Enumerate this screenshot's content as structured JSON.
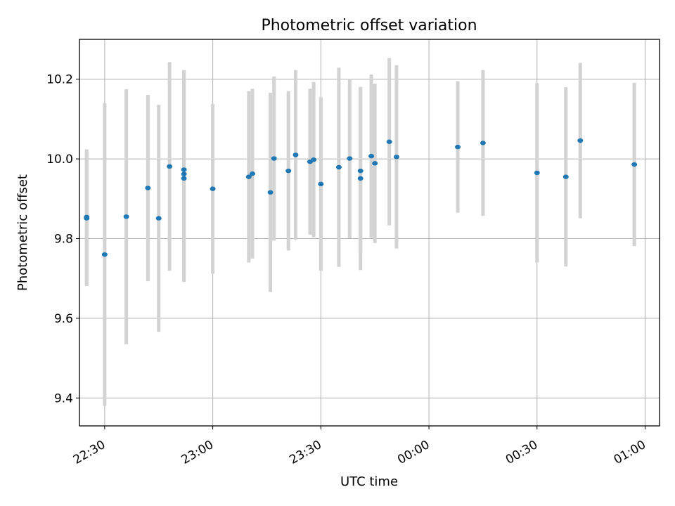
{
  "chart_data": {
    "type": "scatter",
    "title": "Photometric offset variation",
    "xlabel": "UTC time",
    "ylabel": "Photometric offset",
    "grid": true,
    "x_unit": "UTC time (HH:MM, crossing midnight)",
    "xlim": [
      "22:23",
      "01:04"
    ],
    "ylim": [
      9.33,
      10.3
    ],
    "x_ticks": [
      "22:30",
      "23:00",
      "23:30",
      "00:00",
      "00:30",
      "01:00"
    ],
    "y_ticks": [
      "9.4",
      "9.6",
      "9.8",
      "10.0",
      "10.2"
    ],
    "colors": {
      "point": "#1f77b4",
      "errorbar": "#d3d3d3",
      "grid": "#b0b0b0"
    },
    "points": [
      {
        "x": "22:25",
        "y": 9.851,
        "err": 0.17
      },
      {
        "x": "22:25",
        "y": 9.854,
        "err": 0.17
      },
      {
        "x": "22:30",
        "y": 9.76,
        "err": 0.38
      },
      {
        "x": "22:36",
        "y": 9.855,
        "err": 0.32
      },
      {
        "x": "22:42",
        "y": 9.927,
        "err": 0.234
      },
      {
        "x": "22:45",
        "y": 9.851,
        "err": 0.285
      },
      {
        "x": "22:48",
        "y": 9.981,
        "err": 0.262
      },
      {
        "x": "22:52",
        "y": 9.962,
        "err": 0.26
      },
      {
        "x": "22:52",
        "y": 9.973,
        "err": 0.25
      },
      {
        "x": "22:52",
        "y": 9.951,
        "err": 0.26
      },
      {
        "x": "23:00",
        "y": 9.925,
        "err": 0.213
      },
      {
        "x": "23:10",
        "y": 9.955,
        "err": 0.215
      },
      {
        "x": "23:11",
        "y": 9.963,
        "err": 0.213
      },
      {
        "x": "23:16",
        "y": 9.916,
        "err": 0.25
      },
      {
        "x": "23:17",
        "y": 10.001,
        "err": 0.206
      },
      {
        "x": "23:21",
        "y": 9.97,
        "err": 0.2
      },
      {
        "x": "23:23",
        "y": 10.01,
        "err": 0.213
      },
      {
        "x": "23:27",
        "y": 9.993,
        "err": 0.183
      },
      {
        "x": "23:28",
        "y": 9.998,
        "err": 0.195
      },
      {
        "x": "23:30",
        "y": 9.937,
        "err": 0.218
      },
      {
        "x": "23:35",
        "y": 9.979,
        "err": 0.25
      },
      {
        "x": "23:38",
        "y": 10.001,
        "err": 0.2
      },
      {
        "x": "23:41",
        "y": 9.951,
        "err": 0.23
      },
      {
        "x": "23:41",
        "y": 9.97,
        "err": 0.21
      },
      {
        "x": "23:44",
        "y": 10.007,
        "err": 0.205
      },
      {
        "x": "23:45",
        "y": 9.989,
        "err": 0.2
      },
      {
        "x": "23:49",
        "y": 10.043,
        "err": 0.21
      },
      {
        "x": "23:51",
        "y": 10.005,
        "err": 0.23
      },
      {
        "x": "00:08",
        "y": 10.03,
        "err": 0.165
      },
      {
        "x": "00:15",
        "y": 10.04,
        "err": 0.183
      },
      {
        "x": "00:30",
        "y": 9.965,
        "err": 0.225
      },
      {
        "x": "00:38",
        "y": 9.955,
        "err": 0.225
      },
      {
        "x": "00:42",
        "y": 10.046,
        "err": 0.195
      },
      {
        "x": "00:57",
        "y": 9.986,
        "err": 0.205
      }
    ]
  }
}
